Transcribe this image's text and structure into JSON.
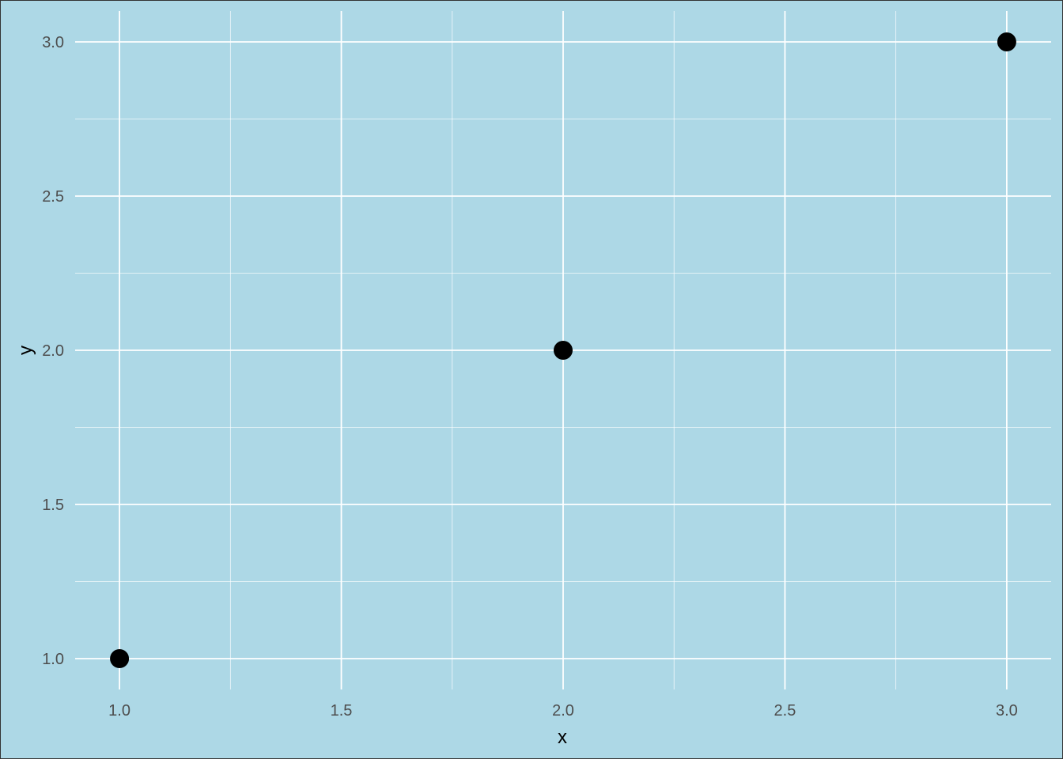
{
  "colors": {
    "panel_background": "#add8e6",
    "plot_border": "#333333",
    "grid_major": "#ffffff",
    "grid_minor": "#ffffff",
    "point_fill": "#000000",
    "tick_text": "#4d4d4d",
    "axis_title_text": "#000000"
  },
  "chart_data": {
    "type": "scatter",
    "title": "",
    "xlabel": "x",
    "ylabel": "y",
    "xlim": [
      0.9,
      3.1
    ],
    "ylim": [
      0.9,
      3.1
    ],
    "x_ticks": [
      1.0,
      1.5,
      2.0,
      2.5,
      3.0
    ],
    "x_tick_labels": [
      "1.0",
      "1.5",
      "2.0",
      "2.5",
      "3.0"
    ],
    "y_ticks": [
      1.0,
      1.5,
      2.0,
      2.5,
      3.0
    ],
    "y_tick_labels": [
      "1.0",
      "1.5",
      "2.0",
      "2.5",
      "3.0"
    ],
    "x_minor_ticks": [
      1.25,
      1.75,
      2.25,
      2.75
    ],
    "y_minor_ticks": [
      1.25,
      1.75,
      2.25,
      2.75
    ],
    "grid": true,
    "legend": "none",
    "series": [
      {
        "points": [
          {
            "x": 1,
            "y": 1
          },
          {
            "x": 2,
            "y": 2
          },
          {
            "x": 3,
            "y": 3
          }
        ]
      }
    ]
  }
}
